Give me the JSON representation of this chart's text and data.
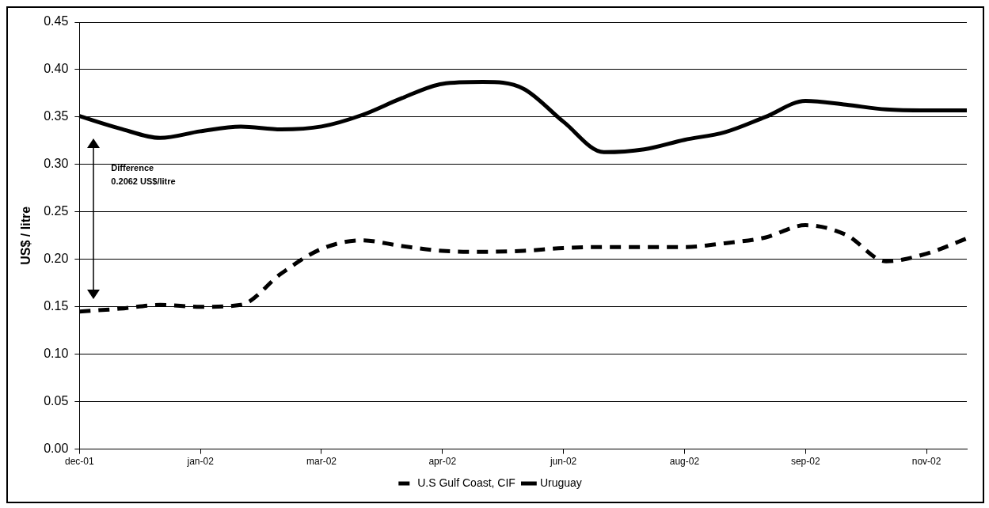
{
  "chart_data": {
    "type": "line",
    "ylabel": "US$ / litre",
    "categories": [
      "dec-01",
      null,
      null,
      "jan-02",
      null,
      null,
      "mar-02",
      null,
      null,
      "apr-02",
      null,
      null,
      "jun-02",
      null,
      null,
      "aug-02",
      null,
      null,
      "sep-02",
      null,
      null,
      "nov-02",
      null
    ],
    "ylim": [
      0,
      0.45
    ],
    "yticks": [
      {
        "value": 0,
        "label": "0.00"
      },
      {
        "value": 0.05,
        "label": "0.05"
      },
      {
        "value": 0.1,
        "label": "0.10"
      },
      {
        "value": 0.15,
        "label": "0.15"
      },
      {
        "value": 0.2,
        "label": "0.20"
      },
      {
        "value": 0.25,
        "label": "0.25"
      },
      {
        "value": 0.3,
        "label": "0.30"
      },
      {
        "value": 0.35,
        "label": "0.35"
      },
      {
        "value": 0.4,
        "label": "0.40"
      },
      {
        "value": 0.45,
        "label": "0.45"
      }
    ],
    "series": [
      {
        "name": "U.S Gulf Coast, CIF",
        "color": "#000000",
        "line_style": "dashed",
        "values": [
          0.145,
          0.148,
          0.152,
          0.15,
          0.152,
          0.185,
          0.211,
          0.22,
          0.214,
          0.209,
          0.208,
          0.209,
          0.212,
          0.213,
          0.213,
          0.213,
          0.217,
          0.223,
          0.236,
          0.226,
          0.198,
          0.206,
          0.222
        ]
      },
      {
        "name": "Uruguay",
        "color": "#000000",
        "line_style": "solid",
        "values": [
          0.351,
          0.338,
          0.328,
          0.335,
          0.34,
          0.337,
          0.34,
          0.352,
          0.37,
          0.385,
          0.387,
          0.38,
          0.345,
          0.313,
          0.316,
          0.326,
          0.334,
          0.35,
          0.367,
          0.363,
          0.358,
          0.357,
          0.357
        ]
      }
    ],
    "annotations": [
      "Difference",
      "0.2062 US$/litre"
    ],
    "grid": "y",
    "legend": "bottom",
    "marker": "none"
  }
}
